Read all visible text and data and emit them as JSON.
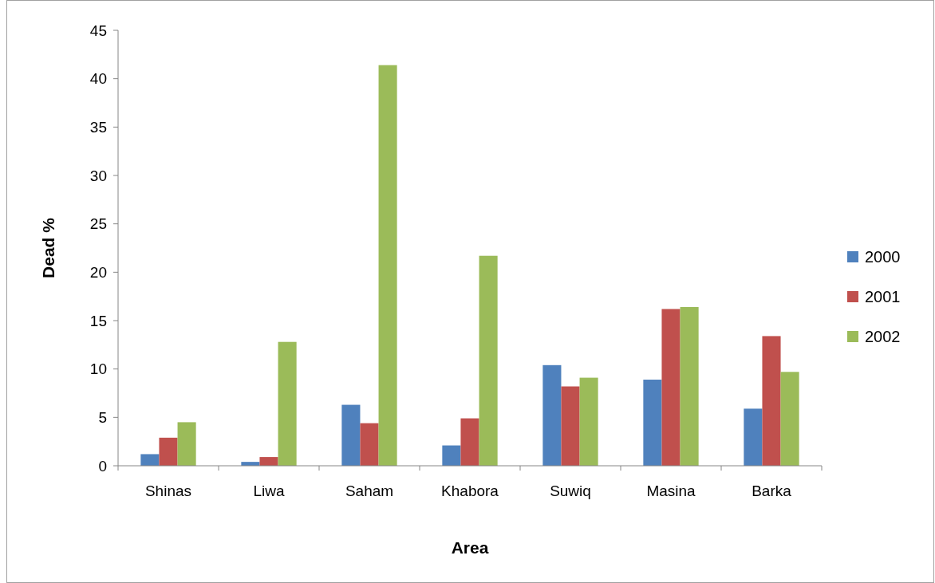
{
  "chart_data": {
    "type": "bar",
    "xlabel": "Area",
    "ylabel": "Dead %",
    "categories": [
      "Shinas",
      "Liwa",
      "Saham",
      "Khabora",
      "Suwiq",
      "Masina",
      "Barka"
    ],
    "series": [
      {
        "name": "2000",
        "color": "#4f81bd",
        "values": [
          1.2,
          0.4,
          6.3,
          2.1,
          10.4,
          8.9,
          5.9
        ]
      },
      {
        "name": "2001",
        "color": "#c0504d",
        "values": [
          2.9,
          0.9,
          4.4,
          4.9,
          8.2,
          16.2,
          13.4
        ]
      },
      {
        "name": "2002",
        "color": "#9bbb59",
        "values": [
          4.5,
          12.8,
          41.4,
          21.7,
          9.1,
          16.4,
          9.7
        ]
      }
    ],
    "ylim": [
      0,
      45
    ],
    "yticks": [
      0,
      5,
      10,
      15,
      20,
      25,
      30,
      35,
      40,
      45
    ],
    "grid": false,
    "legend": "right"
  }
}
